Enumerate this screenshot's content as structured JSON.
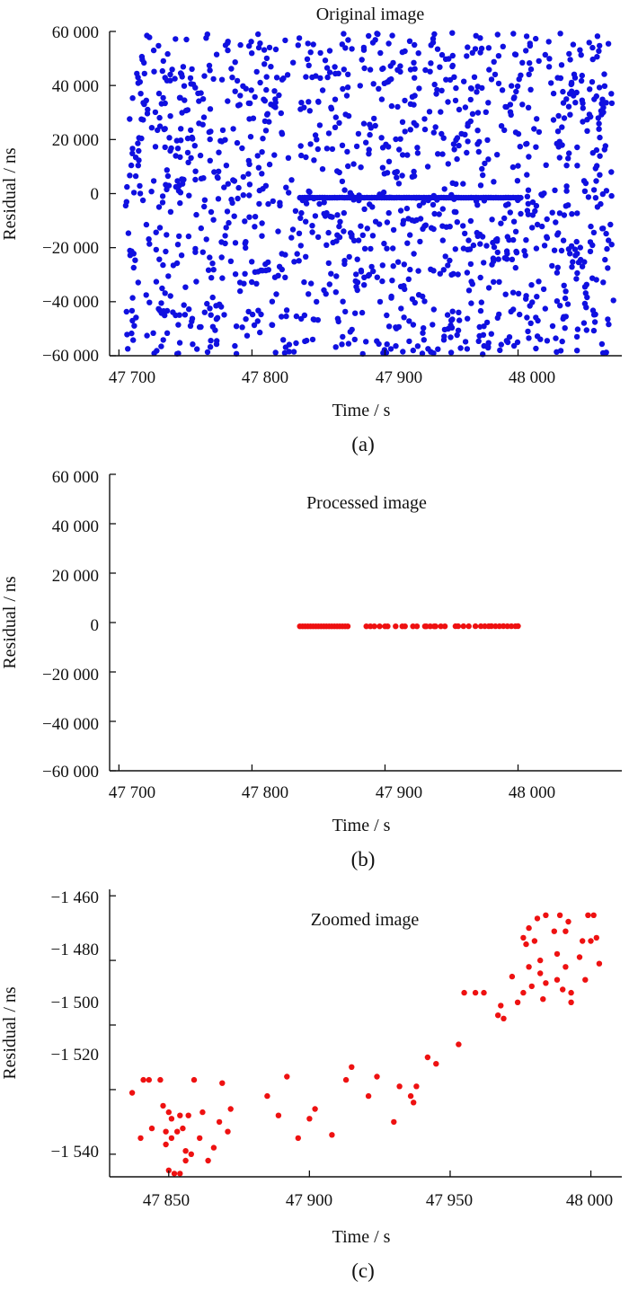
{
  "figure": {
    "panels": [
      {
        "id": "a",
        "caption": "(a)",
        "title": "Original image",
        "xlabel": "Time / s",
        "ylabel": "Residual / ns",
        "x_tick_labels": [
          "47 700",
          "47 800",
          "47 900",
          "48 000"
        ],
        "y_tick_labels": [
          "60 000",
          "40 000",
          "20 000",
          "0",
          "−20 000",
          "−40 000",
          "−60 000"
        ],
        "point_color": "#1010e0"
      },
      {
        "id": "b",
        "caption": "(b)",
        "title": "Processed image",
        "xlabel": "Time / s",
        "ylabel": "Residual / ns",
        "x_tick_labels": [
          "47 700",
          "47 800",
          "47 900",
          "48 000"
        ],
        "y_tick_labels": [
          "60 000",
          "40 000",
          "20 000",
          "0",
          "−20 000",
          "−40 000",
          "−60 000"
        ],
        "point_color": "#ee1111"
      },
      {
        "id": "c",
        "caption": "(c)",
        "title": "Zoomed image",
        "xlabel": "Time / s",
        "ylabel": "Residual / ns",
        "x_tick_labels": [
          "47 850",
          "47 900",
          "47 950",
          "48 000"
        ],
        "y_tick_labels": [
          "−1 460",
          "−1 480",
          "−1 500",
          "−1 520",
          "−1 540"
        ],
        "point_color": "#ee1111"
      }
    ]
  },
  "chart_data": [
    {
      "type": "scatter",
      "title": "Original image",
      "xlabel": "Time / s",
      "ylabel": "Residual / ns",
      "xlim": [
        47693,
        48078
      ],
      "ylim": [
        -60000,
        60000
      ],
      "xticks": [
        47700,
        47800,
        47900,
        48000
      ],
      "yticks": [
        60000,
        40000,
        20000,
        0,
        -20000,
        -40000,
        -60000
      ],
      "grid": false,
      "series": [
        {
          "color": "#1010e0",
          "description_free": true,
          "noise_points": {
            "x_range": [
              47705,
              48072
            ],
            "y_range": [
              -59500,
              59500
            ],
            "count": 1300,
            "distribution": "uniform"
          },
          "signal_points": {
            "x_range": [
              47836,
              48002
            ],
            "y_values_range": [
              -1545,
              -1465
            ],
            "count": 90
          }
        }
      ]
    },
    {
      "type": "scatter",
      "title": "Processed image",
      "xlabel": "Time / s",
      "ylabel": "Residual / ns",
      "xlim": [
        47693,
        48078
      ],
      "ylim": [
        -60000,
        60000
      ],
      "xticks": [
        47700,
        47800,
        47900,
        48000
      ],
      "yticks": [
        60000,
        40000,
        20000,
        0,
        -20000,
        -40000,
        -60000
      ],
      "grid": false,
      "series": [
        {
          "color": "#ee1111",
          "points": [
            [
              47836,
              -1520
            ],
            [
              47838,
              -1521
            ],
            [
              47840,
              -1521
            ],
            [
              47842,
              -1522
            ],
            [
              47844,
              -1522
            ],
            [
              47846,
              -1523
            ],
            [
              47848,
              -1524
            ],
            [
              47850,
              -1525
            ],
            [
              47852,
              -1526
            ],
            [
              47854,
              -1527
            ],
            [
              47856,
              -1528
            ],
            [
              47858,
              -1529
            ],
            [
              47860,
              -1530
            ],
            [
              47862,
              -1531
            ],
            [
              47864,
              -1532
            ],
            [
              47866,
              -1533
            ],
            [
              47868,
              -1534
            ],
            [
              47870,
              -1534
            ],
            [
              47872,
              -1535
            ],
            [
              47886,
              -1522
            ],
            [
              47889,
              -1528
            ],
            [
              47892,
              -1516
            ],
            [
              47896,
              -1535
            ],
            [
              47900,
              -1529
            ],
            [
              47902,
              -1526
            ],
            [
              47908,
              -1534
            ],
            [
              47913,
              -1517
            ],
            [
              47915,
              -1513
            ],
            [
              47921,
              -1522
            ],
            [
              47924,
              -1518
            ],
            [
              47930,
              -1530
            ],
            [
              47931,
              -1520
            ],
            [
              47934,
              -1522
            ],
            [
              47937,
              -1524
            ],
            [
              47938,
              -1519
            ],
            [
              47942,
              -1510
            ],
            [
              47945,
              -1512
            ],
            [
              47953,
              -1506
            ],
            [
              47955,
              -1490
            ],
            [
              47959,
              -1490
            ],
            [
              47963,
              -1490
            ],
            [
              47968,
              -1496
            ],
            [
              47972,
              -1486
            ],
            [
              47975,
              -1474
            ],
            [
              47978,
              -1473
            ],
            [
              47980,
              -1468
            ],
            [
              47983,
              -1480
            ],
            [
              47986,
              -1488
            ],
            [
              47989,
              -1470
            ],
            [
              47992,
              -1473
            ],
            [
              47995,
              -1478
            ],
            [
              47998,
              -1476
            ],
            [
              48000,
              -1470
            ]
          ]
        }
      ]
    },
    {
      "type": "scatter",
      "title": "Zoomed image",
      "xlabel": "Time / s",
      "ylabel": "Residual / ns",
      "xlim": [
        47829,
        48011
      ],
      "ylim": [
        -1547,
        -1458
      ],
      "xticks": [
        47850,
        47900,
        47950,
        48000
      ],
      "yticks": [
        -1460,
        -1480,
        -1500,
        -1520,
        -1540
      ],
      "grid": false,
      "series": [
        {
          "color": "#ee1111",
          "points": [
            [
              47837,
              -1521
            ],
            [
              47840,
              -1535
            ],
            [
              47841,
              -1517
            ],
            [
              47843,
              -1517
            ],
            [
              47844,
              -1532
            ],
            [
              47847,
              -1517
            ],
            [
              47848,
              -1525
            ],
            [
              47849,
              -1533
            ],
            [
              47849,
              -1537
            ],
            [
              47850,
              -1527
            ],
            [
              47850,
              -1545
            ],
            [
              47851,
              -1529
            ],
            [
              47851,
              -1535
            ],
            [
              47852,
              -1546
            ],
            [
              47853,
              -1533
            ],
            [
              47854,
              -1528
            ],
            [
              47854,
              -1546
            ],
            [
              47855,
              -1532
            ],
            [
              47856,
              -1539
            ],
            [
              47856,
              -1542
            ],
            [
              47857,
              -1528
            ],
            [
              47858,
              -1540
            ],
            [
              47859,
              -1517
            ],
            [
              47861,
              -1535
            ],
            [
              47862,
              -1527
            ],
            [
              47864,
              -1542
            ],
            [
              47866,
              -1538
            ],
            [
              47868,
              -1530
            ],
            [
              47869,
              -1518
            ],
            [
              47871,
              -1533
            ],
            [
              47872,
              -1526
            ],
            [
              47885,
              -1522
            ],
            [
              47889,
              -1528
            ],
            [
              47892,
              -1516
            ],
            [
              47896,
              -1535
            ],
            [
              47900,
              -1529
            ],
            [
              47902,
              -1526
            ],
            [
              47908,
              -1534
            ],
            [
              47913,
              -1517
            ],
            [
              47915,
              -1513
            ],
            [
              47921,
              -1522
            ],
            [
              47924,
              -1516
            ],
            [
              47930,
              -1530
            ],
            [
              47932,
              -1519
            ],
            [
              47936,
              -1522
            ],
            [
              47937,
              -1524
            ],
            [
              47938,
              -1519
            ],
            [
              47942,
              -1510
            ],
            [
              47945,
              -1512
            ],
            [
              47953,
              -1506
            ],
            [
              47955,
              -1490
            ],
            [
              47959,
              -1490
            ],
            [
              47962,
              -1490
            ],
            [
              47967,
              -1497
            ],
            [
              47968,
              -1494
            ],
            [
              47969,
              -1498
            ],
            [
              47972,
              -1485
            ],
            [
              47974,
              -1493
            ],
            [
              47976,
              -1490
            ],
            [
              47976,
              -1473
            ],
            [
              47977,
              -1475
            ],
            [
              47978,
              -1470
            ],
            [
              47978,
              -1482
            ],
            [
              47979,
              -1488
            ],
            [
              47980,
              -1474
            ],
            [
              47981,
              -1467
            ],
            [
              47982,
              -1480
            ],
            [
              47982,
              -1484
            ],
            [
              47983,
              -1492
            ],
            [
              47984,
              -1487
            ],
            [
              47984,
              -1466
            ],
            [
              47987,
              -1471
            ],
            [
              47988,
              -1478
            ],
            [
              47988,
              -1486
            ],
            [
              47989,
              -1466
            ],
            [
              47990,
              -1489
            ],
            [
              47991,
              -1471
            ],
            [
              47991,
              -1482
            ],
            [
              47992,
              -1468
            ],
            [
              47993,
              -1490
            ],
            [
              47993,
              -1493
            ],
            [
              47996,
              -1479
            ],
            [
              47997,
              -1474
            ],
            [
              47998,
              -1486
            ],
            [
              47999,
              -1466
            ],
            [
              48000,
              -1474
            ],
            [
              48001,
              -1466
            ],
            [
              48002,
              -1473
            ],
            [
              48003,
              -1481
            ]
          ]
        }
      ]
    }
  ]
}
